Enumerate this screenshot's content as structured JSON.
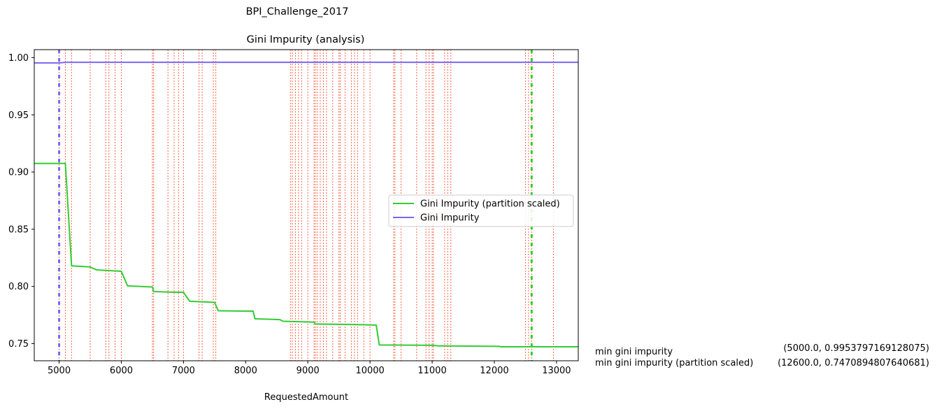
{
  "figure_title": "BPI_Challenge_2017",
  "chart_data": {
    "type": "line",
    "title": "Gini Impurity (analysis)",
    "xlabel": "RequestedAmount",
    "ylabel": "",
    "xlim": [
      4600,
      13350
    ],
    "ylim": [
      0.735,
      1.007
    ],
    "x_ticks": [
      5000,
      6000,
      7000,
      8000,
      9000,
      10000,
      11000,
      12000,
      13000
    ],
    "y_ticks": [
      0.75,
      0.8,
      0.85,
      0.9,
      0.95,
      1.0
    ],
    "y_tick_labels": [
      "0.75",
      "0.80",
      "0.85",
      "0.90",
      "0.95",
      "1.00"
    ],
    "grid": false,
    "legend_position": "center-right",
    "series": [
      {
        "name": "Gini Impurity (partition scaled)",
        "color": "#32cd32",
        "x": [
          4600,
          5000,
          5100,
          5200,
          5500,
          5600,
          5750,
          6000,
          6100,
          6500,
          6520,
          6800,
          7000,
          7100,
          7500,
          7560,
          7900,
          8120,
          8150,
          8550,
          8600,
          9100,
          9120,
          9900,
          10100,
          10150,
          11000,
          11100,
          12080,
          12100,
          13350
        ],
        "y": [
          0.9075,
          0.9075,
          0.9075,
          0.818,
          0.817,
          0.8145,
          0.814,
          0.8132,
          0.8005,
          0.7995,
          0.7955,
          0.795,
          0.7948,
          0.787,
          0.786,
          0.7787,
          0.7785,
          0.7784,
          0.7717,
          0.771,
          0.7695,
          0.7688,
          0.7672,
          0.7665,
          0.7662,
          0.7488,
          0.7485,
          0.748,
          0.7476,
          0.7472,
          0.7472
        ]
      },
      {
        "name": "Gini Impurity",
        "color": "#7b68ee",
        "x": [
          4600,
          5000,
          5100,
          13350
        ],
        "y": [
          0.9954,
          0.9954,
          0.9959,
          0.9959
        ]
      }
    ],
    "split_candidates": {
      "color": "#ff6347",
      "x": [
        5000,
        5100,
        5200,
        5500,
        5750,
        5800,
        5900,
        6000,
        6500,
        6520,
        6750,
        6850,
        6920,
        7000,
        7250,
        7300,
        7480,
        7520,
        8720,
        8750,
        8800,
        8850,
        8900,
        9000,
        9100,
        9120,
        9150,
        9200,
        9250,
        9300,
        9400,
        9500,
        9520,
        9600,
        9700,
        9750,
        9800,
        9900,
        10000,
        10380,
        10400,
        10500,
        10750,
        10900,
        10950,
        11000,
        11020,
        11200,
        11250,
        11300,
        12500,
        12550,
        12600,
        12950
      ]
    },
    "min_markers": [
      {
        "x": 5000,
        "color": "#7b68ee"
      },
      {
        "x": 12600,
        "color": "#32cd32"
      }
    ],
    "annotations": [
      {
        "label": "min gini impurity",
        "value": "(5000.0, 0.9953797169128075)"
      },
      {
        "label": "min gini impurity (partition scaled)",
        "value": "(12600.0, 0.7470894807640681)"
      }
    ]
  }
}
